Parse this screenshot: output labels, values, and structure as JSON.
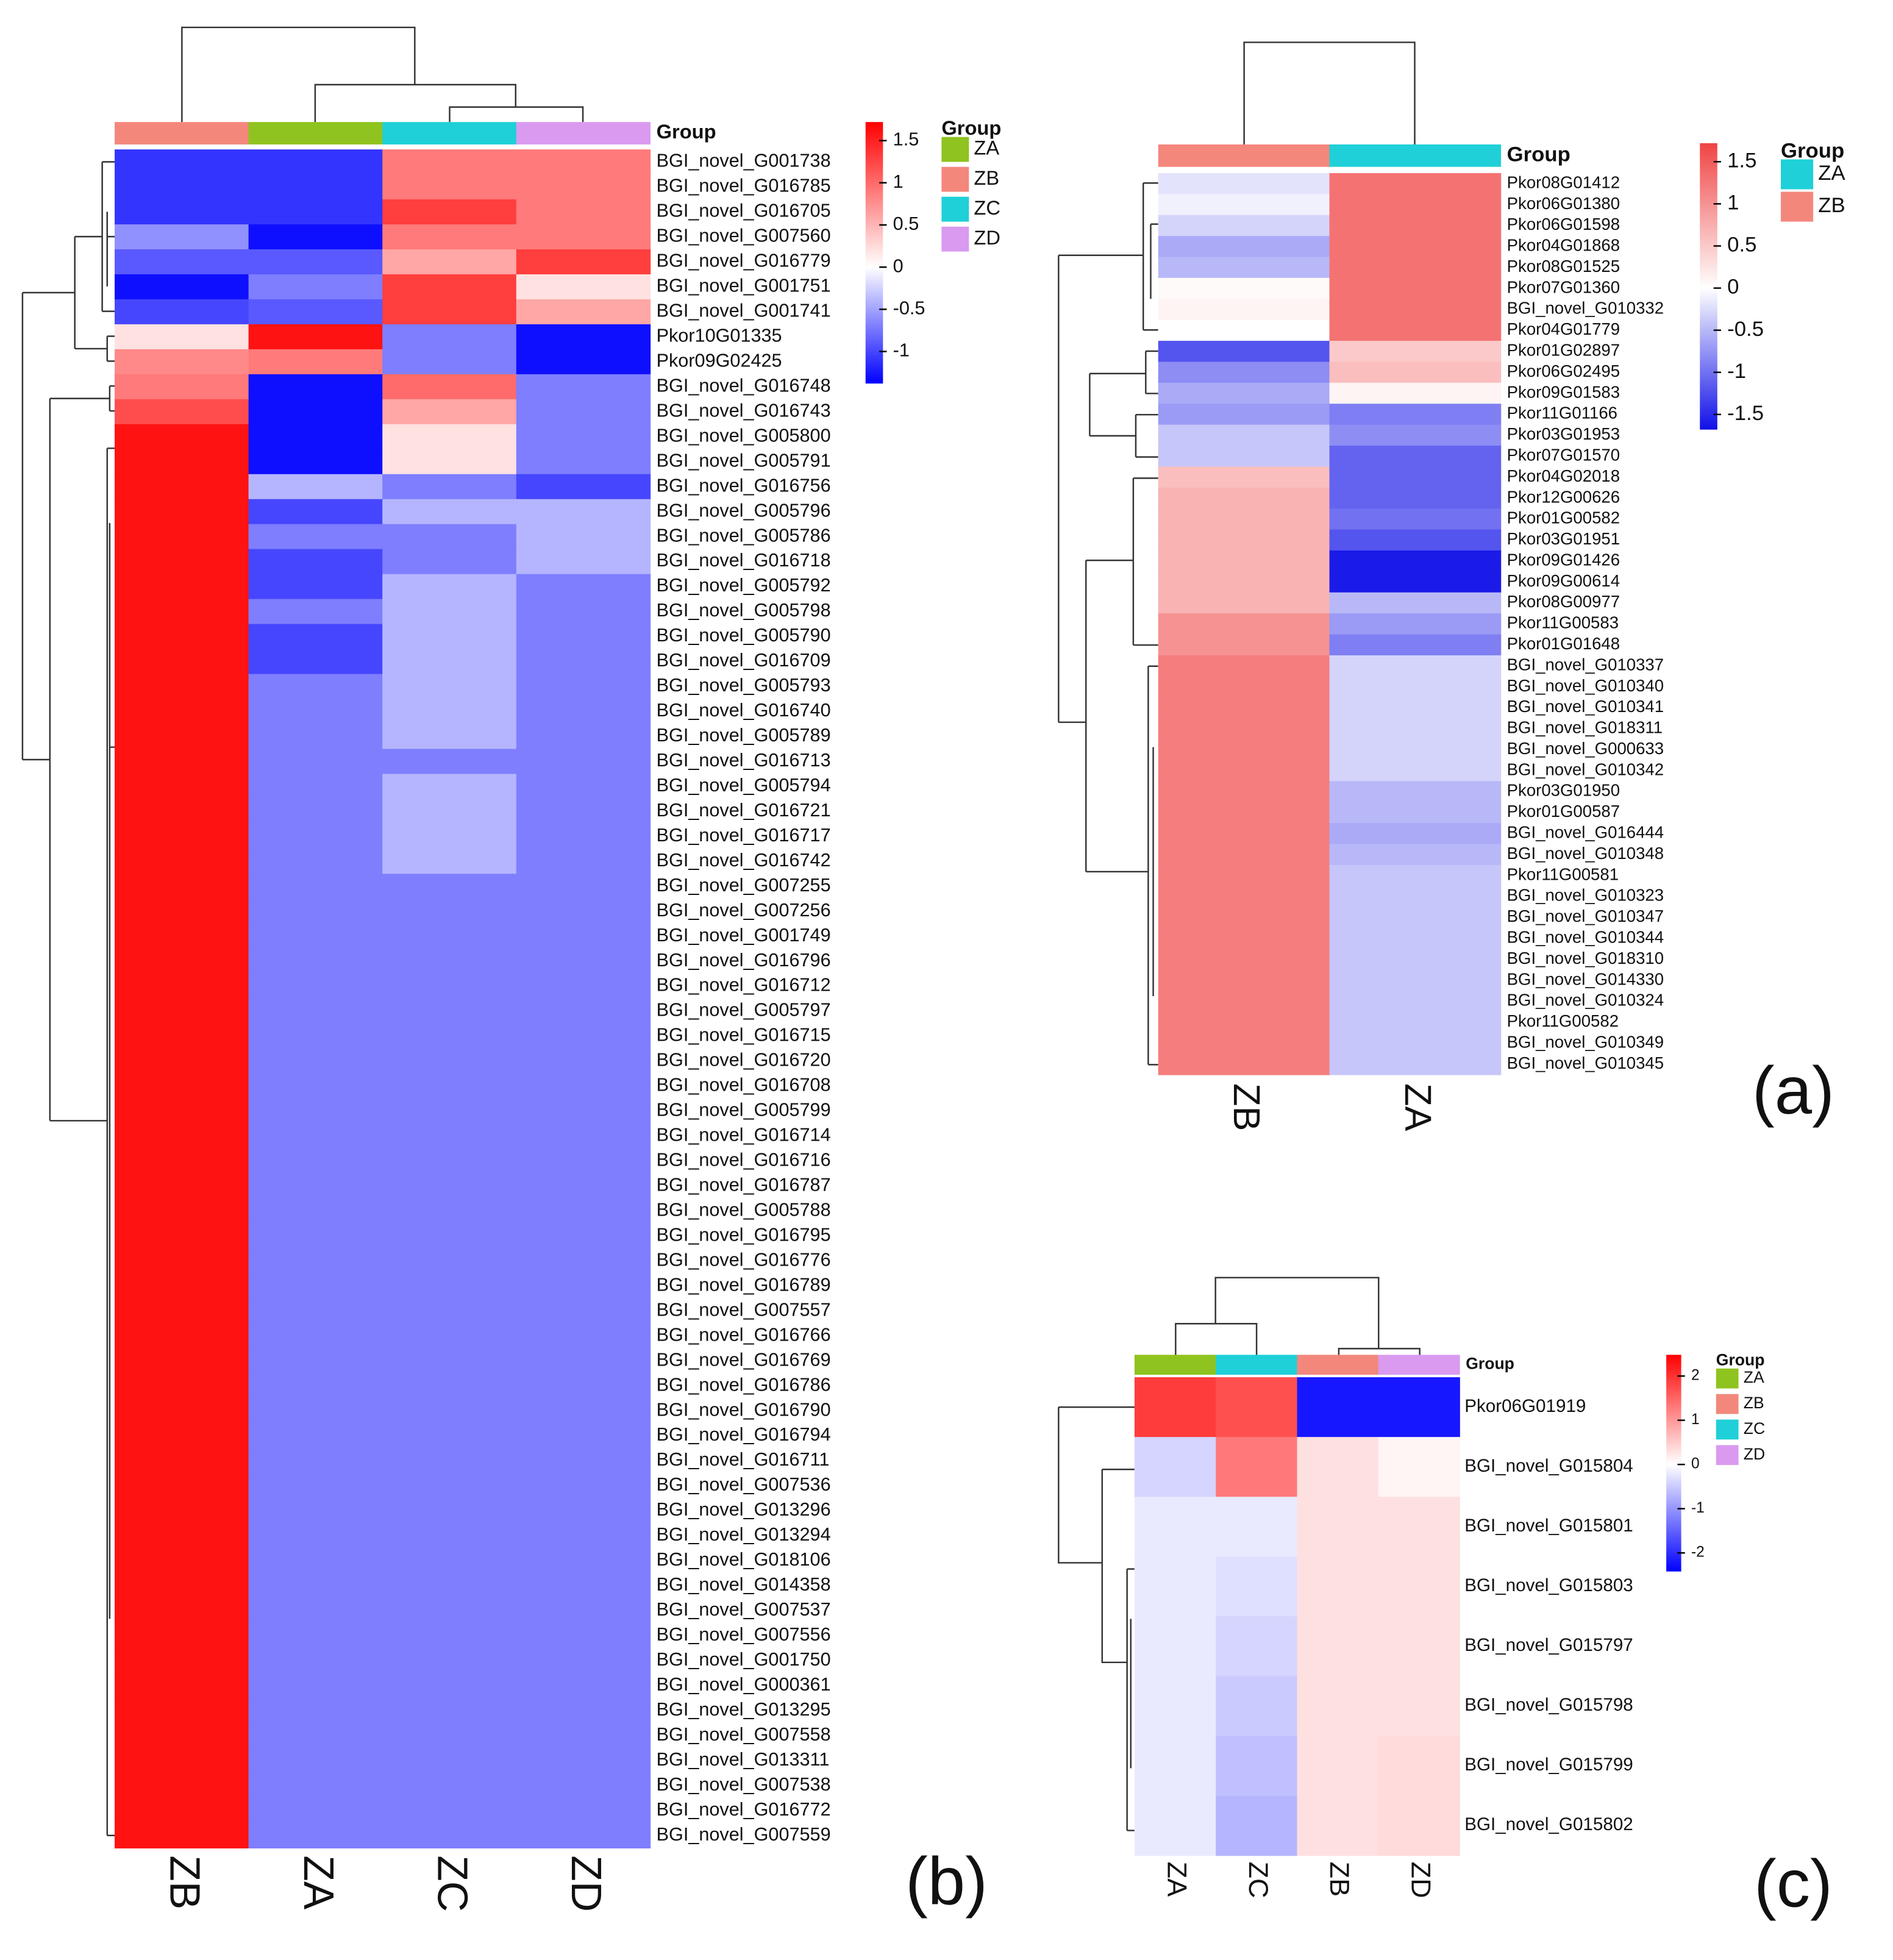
{
  "chart_data": [
    {
      "type": "heatmap",
      "panel_label": "(a)",
      "legend_title": "Group",
      "groups": [
        {
          "name": "ZA",
          "color": "#1fd0d8"
        },
        {
          "name": "ZB",
          "color": "#f4877c"
        }
      ],
      "columns": [
        "ZB",
        "ZA"
      ],
      "rows": [
        "Pkor08G01412",
        "Pkor06G01380",
        "Pkor06G01598",
        "Pkor04G01868",
        "Pkor08G01525",
        "Pkor07G01360",
        "BGI_novel_G010332",
        "Pkor04G01779",
        "Pkor01G02897",
        "Pkor06G02495",
        "Pkor09G01583",
        "Pkor11G01166",
        "Pkor03G01953",
        "Pkor07G01570",
        "Pkor04G02018",
        "Pkor12G00626",
        "Pkor01G00582",
        "Pkor03G01951",
        "Pkor09G01426",
        "Pkor09G00614",
        "Pkor08G00977",
        "Pkor11G00583",
        "Pkor01G01648",
        "BGI_novel_G010337",
        "BGI_novel_G010340",
        "BGI_novel_G010341",
        "BGI_novel_G018311",
        "BGI_novel_G000633",
        "BGI_novel_G010342",
        "Pkor03G01950",
        "Pkor01G00587",
        "BGI_novel_G016444",
        "BGI_novel_G010348",
        "Pkor11G00581",
        "BGI_novel_G010323",
        "BGI_novel_G010347",
        "BGI_novel_G010344",
        "BGI_novel_G018310",
        "BGI_novel_G014330",
        "BGI_novel_G010324",
        "Pkor11G00582",
        "BGI_novel_G010349",
        "BGI_novel_G010345"
      ],
      "values": [
        [
          -0.2,
          1.3
        ],
        [
          -0.1,
          1.3
        ],
        [
          -0.3,
          1.3
        ],
        [
          -0.6,
          1.3
        ],
        [
          -0.5,
          1.3
        ],
        [
          0.05,
          1.3
        ],
        [
          0.1,
          1.3
        ],
        [
          0,
          1.3
        ],
        [
          -1.2,
          0.5
        ],
        [
          -0.8,
          0.6
        ],
        [
          -0.6,
          0.1
        ],
        [
          -0.7,
          -0.9
        ],
        [
          -0.4,
          -0.8
        ],
        [
          -0.4,
          -1.1
        ],
        [
          0.6,
          -1.1
        ],
        [
          0.7,
          -1.1
        ],
        [
          0.7,
          -1
        ],
        [
          0.7,
          -1.2
        ],
        [
          0.7,
          -1.6
        ],
        [
          0.7,
          -1.6
        ],
        [
          0.7,
          -0.5
        ],
        [
          1,
          -0.7
        ],
        [
          1,
          -0.9
        ],
        [
          1.2,
          -0.3
        ],
        [
          1.2,
          -0.3
        ],
        [
          1.2,
          -0.3
        ],
        [
          1.2,
          -0.3
        ],
        [
          1.2,
          -0.3
        ],
        [
          1.2,
          -0.3
        ],
        [
          1.2,
          -0.5
        ],
        [
          1.2,
          -0.5
        ],
        [
          1.2,
          -0.6
        ],
        [
          1.2,
          -0.5
        ],
        [
          1.2,
          -0.4
        ],
        [
          1.2,
          -0.4
        ],
        [
          1.2,
          -0.4
        ],
        [
          1.2,
          -0.4
        ],
        [
          1.2,
          -0.4
        ],
        [
          1.2,
          -0.4
        ],
        [
          1.2,
          -0.4
        ],
        [
          1.2,
          -0.4
        ],
        [
          1.2,
          -0.4
        ],
        [
          1.2,
          -0.4
        ]
      ],
      "clim": [
        -1.68,
        1.72
      ],
      "cticks": [
        1.5,
        1,
        0.5,
        0,
        -0.5,
        -1,
        -1.5
      ],
      "colors": {
        "low": "#1010e8",
        "mid": "#ffffff",
        "high": "#f04444"
      }
    },
    {
      "type": "heatmap",
      "panel_label": "(b)",
      "legend_title": "Group",
      "groups": [
        {
          "name": "ZA",
          "color": "#8fc31f"
        },
        {
          "name": "ZB",
          "color": "#f4877c"
        },
        {
          "name": "ZC",
          "color": "#1fd0d8"
        },
        {
          "name": "ZD",
          "color": "#d99af0"
        }
      ],
      "columns": [
        "ZB",
        "ZA",
        "ZC",
        "ZD"
      ],
      "rows": [
        "BGI_novel_G001738",
        "BGI_novel_G016785",
        "BGI_novel_G016705",
        "BGI_novel_G007560",
        "BGI_novel_G016779",
        "BGI_novel_G001751",
        "BGI_novel_G001741",
        "Pkor10G01335",
        "Pkor09G02425",
        "BGI_novel_G016748",
        "BGI_novel_G016743",
        "BGI_novel_G005800",
        "BGI_novel_G005791",
        "BGI_novel_G016756",
        "BGI_novel_G005796",
        "BGI_novel_G005786",
        "BGI_novel_G016718",
        "BGI_novel_G005792",
        "BGI_novel_G005798",
        "BGI_novel_G005790",
        "BGI_novel_G016709",
        "BGI_novel_G005793",
        "BGI_novel_G016740",
        "BGI_novel_G005789",
        "BGI_novel_G016713",
        "BGI_novel_G005794",
        "BGI_novel_G016721",
        "BGI_novel_G016717",
        "BGI_novel_G016742",
        "BGI_novel_G007255",
        "BGI_novel_G007256",
        "BGI_novel_G001749",
        "BGI_novel_G016796",
        "BGI_novel_G016712",
        "BGI_novel_G005797",
        "BGI_novel_G016715",
        "BGI_novel_G016720",
        "BGI_novel_G016708",
        "BGI_novel_G005799",
        "BGI_novel_G016714",
        "BGI_novel_G016716",
        "BGI_novel_G016787",
        "BGI_novel_G005788",
        "BGI_novel_G016795",
        "BGI_novel_G016776",
        "BGI_novel_G016789",
        "BGI_novel_G007557",
        "BGI_novel_G016766",
        "BGI_novel_G016769",
        "BGI_novel_G016786",
        "BGI_novel_G016790",
        "BGI_novel_G016794",
        "BGI_novel_G016711",
        "BGI_novel_G007536",
        "BGI_novel_G013296",
        "BGI_novel_G013294",
        "BGI_novel_G018106",
        "BGI_novel_G014358",
        "BGI_novel_G007537",
        "BGI_novel_G007556",
        "BGI_novel_G001750",
        "BGI_novel_G000361",
        "BGI_novel_G013295",
        "BGI_novel_G007558",
        "BGI_novel_G013311",
        "BGI_novel_G007538",
        "BGI_novel_G016772",
        "BGI_novel_G007559"
      ],
      "values": [
        [
          -1.1,
          -1.1,
          0.9,
          0.9
        ],
        [
          -1.1,
          -1.1,
          0.9,
          0.9
        ],
        [
          -1.1,
          -1.1,
          1.3,
          0.9
        ],
        [
          -0.6,
          -1.3,
          0.9,
          0.9
        ],
        [
          -0.9,
          -0.9,
          0.6,
          1.3
        ],
        [
          -1.3,
          -0.7,
          1.3,
          0.2
        ],
        [
          -1,
          -0.9,
          1.3,
          0.6
        ],
        [
          0.2,
          1.6,
          -0.7,
          -1.3
        ],
        [
          0.8,
          0.9,
          -0.7,
          -1.3
        ],
        [
          0.9,
          -1.3,
          1,
          -0.7
        ],
        [
          1.2,
          -1.3,
          0.6,
          -0.7
        ],
        [
          1.6,
          -1.3,
          0.2,
          -0.7
        ],
        [
          1.6,
          -1.3,
          0.2,
          -0.7
        ],
        [
          1.6,
          -0.4,
          -0.7,
          -1
        ],
        [
          1.6,
          -1,
          -0.4,
          -0.4
        ],
        [
          1.6,
          -0.7,
          -0.7,
          -0.4
        ],
        [
          1.6,
          -1,
          -0.7,
          -0.4
        ],
        [
          1.6,
          -1,
          -0.4,
          -0.7
        ],
        [
          1.6,
          -0.7,
          -0.4,
          -0.7
        ],
        [
          1.6,
          -1,
          -0.4,
          -0.7
        ],
        [
          1.6,
          -1,
          -0.4,
          -0.7
        ],
        [
          1.6,
          -0.7,
          -0.4,
          -0.7
        ],
        [
          1.6,
          -0.7,
          -0.4,
          -0.7
        ],
        [
          1.6,
          -0.7,
          -0.4,
          -0.7
        ],
        [
          1.6,
          -0.7,
          -0.7,
          -0.7
        ],
        [
          1.6,
          -0.7,
          -0.4,
          -0.7
        ],
        [
          1.6,
          -0.7,
          -0.4,
          -0.7
        ],
        [
          1.6,
          -0.7,
          -0.4,
          -0.7
        ],
        [
          1.6,
          -0.7,
          -0.4,
          -0.7
        ],
        [
          1.6,
          -0.7,
          -0.7,
          -0.7
        ],
        [
          1.6,
          -0.7,
          -0.7,
          -0.7
        ],
        [
          1.6,
          -0.7,
          -0.7,
          -0.7
        ],
        [
          1.6,
          -0.7,
          -0.7,
          -0.7
        ],
        [
          1.6,
          -0.7,
          -0.7,
          -0.7
        ],
        [
          1.6,
          -0.7,
          -0.7,
          -0.7
        ],
        [
          1.6,
          -0.7,
          -0.7,
          -0.7
        ],
        [
          1.6,
          -0.7,
          -0.7,
          -0.7
        ],
        [
          1.6,
          -0.7,
          -0.7,
          -0.7
        ],
        [
          1.6,
          -0.7,
          -0.7,
          -0.7
        ],
        [
          1.6,
          -0.7,
          -0.7,
          -0.7
        ],
        [
          1.6,
          -0.7,
          -0.7,
          -0.7
        ],
        [
          1.6,
          -0.7,
          -0.7,
          -0.7
        ],
        [
          1.6,
          -0.7,
          -0.7,
          -0.7
        ],
        [
          1.6,
          -0.7,
          -0.7,
          -0.7
        ],
        [
          1.6,
          -0.7,
          -0.7,
          -0.7
        ],
        [
          1.6,
          -0.7,
          -0.7,
          -0.7
        ],
        [
          1.6,
          -0.7,
          -0.7,
          -0.7
        ],
        [
          1.6,
          -0.7,
          -0.7,
          -0.7
        ],
        [
          1.6,
          -0.7,
          -0.7,
          -0.7
        ],
        [
          1.6,
          -0.7,
          -0.7,
          -0.7
        ],
        [
          1.6,
          -0.7,
          -0.7,
          -0.7
        ],
        [
          1.6,
          -0.7,
          -0.7,
          -0.7
        ],
        [
          1.6,
          -0.7,
          -0.7,
          -0.7
        ],
        [
          1.6,
          -0.7,
          -0.7,
          -0.7
        ],
        [
          1.6,
          -0.7,
          -0.7,
          -0.7
        ],
        [
          1.6,
          -0.7,
          -0.7,
          -0.7
        ],
        [
          1.6,
          -0.7,
          -0.7,
          -0.7
        ],
        [
          1.6,
          -0.7,
          -0.7,
          -0.7
        ],
        [
          1.6,
          -0.7,
          -0.7,
          -0.7
        ],
        [
          1.6,
          -0.7,
          -0.7,
          -0.7
        ],
        [
          1.6,
          -0.7,
          -0.7,
          -0.7
        ],
        [
          1.6,
          -0.7,
          -0.7,
          -0.7
        ],
        [
          1.6,
          -0.7,
          -0.7,
          -0.7
        ],
        [
          1.6,
          -0.7,
          -0.7,
          -0.7
        ],
        [
          1.6,
          -0.7,
          -0.7,
          -0.7
        ],
        [
          1.6,
          -0.7,
          -0.7,
          -0.7
        ],
        [
          1.6,
          -0.7,
          -0.7,
          -0.7
        ],
        [
          1.6,
          -0.7,
          -0.7,
          -0.7
        ]
      ],
      "clim": [
        -1.38,
        1.72
      ],
      "cticks": [
        1.5,
        1,
        0.5,
        0,
        -0.5,
        -1
      ],
      "colors": {
        "low": "#0000ff",
        "mid": "#ffffff",
        "high": "#ff0000"
      }
    },
    {
      "type": "heatmap",
      "panel_label": "(c)",
      "legend_title": "Group",
      "groups": [
        {
          "name": "ZA",
          "color": "#8fc31f"
        },
        {
          "name": "ZB",
          "color": "#f4877c"
        },
        {
          "name": "ZC",
          "color": "#1fd0d8"
        },
        {
          "name": "ZD",
          "color": "#d99af0"
        }
      ],
      "columns": [
        "ZA",
        "ZC",
        "ZB",
        "ZD"
      ],
      "rows": [
        "Pkor06G01919",
        "BGI_novel_G015804",
        "BGI_novel_G015801",
        "BGI_novel_G015803",
        "BGI_novel_G015797",
        "BGI_novel_G015798",
        "BGI_novel_G015799",
        "BGI_novel_G015802"
      ],
      "values": [
        [
          1.9,
          1.7,
          -2.2,
          -2.2
        ],
        [
          -0.4,
          1.3,
          0.3,
          0.1
        ],
        [
          -0.2,
          -0.2,
          0.3,
          0.3
        ],
        [
          -0.2,
          -0.3,
          0.3,
          0.3
        ],
        [
          -0.2,
          -0.4,
          0.3,
          0.3
        ],
        [
          -0.2,
          -0.5,
          0.3,
          0.3
        ],
        [
          -0.2,
          -0.6,
          0.3,
          0.35
        ],
        [
          -0.2,
          -0.7,
          0.3,
          0.35
        ]
      ],
      "clim": [
        -2.42,
        2.48
      ],
      "cticks": [
        2,
        1,
        0,
        -1,
        -2
      ],
      "colors": {
        "low": "#0000ff",
        "mid": "#ffffff",
        "high": "#ff0000"
      }
    }
  ]
}
